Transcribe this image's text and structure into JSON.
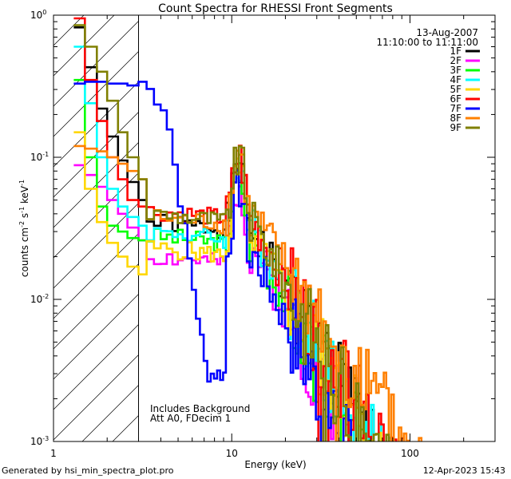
{
  "chart_data": {
    "type": "line",
    "title": "Count Spectra for RHESSI Front Segments",
    "xlabel": "Energy (keV)",
    "ylabel_parts": [
      "counts cm",
      "-2",
      " s",
      "-1",
      " keV",
      "-1"
    ],
    "xscale": "log",
    "yscale": "log",
    "xlim": [
      1,
      300
    ],
    "ylim": [
      0.001,
      1.0
    ],
    "x_tick_labels": [
      {
        "value": 1,
        "label": "1"
      },
      {
        "value": 10,
        "label": "10"
      },
      {
        "value": 100,
        "label": "100"
      }
    ],
    "y_tick_labels": [
      {
        "value": 1,
        "base": "10",
        "exp": "0"
      },
      {
        "value": 0.1,
        "base": "10",
        "exp": "-1"
      },
      {
        "value": 0.01,
        "base": "10",
        "exp": "-2"
      },
      {
        "value": 0.001,
        "base": "10",
        "exp": "-3"
      }
    ],
    "hatched_region_end_keV": 3,
    "legend_position": "top-right",
    "header_lines": [
      "13-Aug-2007",
      "11:10:00 to 11:11:00"
    ],
    "annotations": [
      "Includes Background",
      "Att A0, FDecim 1"
    ],
    "series": [
      {
        "name": "1F",
        "color": "#000000",
        "low": [
          0.82,
          0.43,
          0.22,
          0.14,
          0.095,
          0.067,
          0.05
        ],
        "cont_start": 0.035,
        "peak": 0.088,
        "tail_pow": 2.3,
        "seed": 1
      },
      {
        "name": "2F",
        "color": "#ff00ff",
        "low": [
          0.088,
          0.075,
          0.062,
          0.05,
          0.04,
          0.032,
          0.026
        ],
        "cont_start": 0.02,
        "peak": 0.065,
        "tail_pow": 2.4,
        "seed": 2
      },
      {
        "name": "3F",
        "color": "#00ff00",
        "low": [
          0.35,
          0.1,
          0.045,
          0.033,
          0.03,
          0.027,
          0.026
        ],
        "cont_start": 0.028,
        "peak": 0.075,
        "tail_pow": 2.4,
        "seed": 3
      },
      {
        "name": "4F",
        "color": "#00ffff",
        "low": [
          0.6,
          0.24,
          0.1,
          0.06,
          0.045,
          0.038,
          0.033
        ],
        "cont_start": 0.03,
        "peak": 0.09,
        "tail_pow": 2.3,
        "seed": 4
      },
      {
        "name": "5F",
        "color": "#ffd700",
        "low": [
          0.15,
          0.06,
          0.035,
          0.025,
          0.02,
          0.017,
          0.015
        ],
        "cont_start": 0.023,
        "peak": 0.082,
        "tail_pow": 2.3,
        "seed": 5
      },
      {
        "name": "6F",
        "color": "#ff0000",
        "low": [
          0.95,
          0.35,
          0.18,
          0.1,
          0.07,
          0.05,
          0.045
        ],
        "cont_start": 0.042,
        "peak": 0.1,
        "tail_pow": 2.2,
        "seed": 6
      },
      {
        "name": "7F",
        "color": "#0000ff",
        "low": [
          0.33,
          0.34,
          0.34,
          0.33,
          0.33,
          0.32,
          0.34
        ],
        "cont_start": 0.02,
        "peak": 0.06,
        "tail_pow": 2.6,
        "seed": 7
      },
      {
        "name": "8F",
        "color": "#ff8000",
        "low": [
          0.12,
          0.115,
          0.11,
          0.1,
          0.09,
          0.08,
          0.07
        ],
        "cont_start": 0.038,
        "peak": 0.11,
        "tail_pow": 1.9,
        "seed": 8
      },
      {
        "name": "9F",
        "color": "#808000",
        "low": [
          0.85,
          0.6,
          0.4,
          0.25,
          0.15,
          0.1,
          0.07
        ],
        "cont_start": 0.04,
        "peak": 0.1,
        "tail_pow": 2.4,
        "seed": 9
      }
    ]
  },
  "footer": {
    "left": "Generated by hsi_min_spectra_plot.pro",
    "right": "12-Apr-2023 15:43"
  }
}
